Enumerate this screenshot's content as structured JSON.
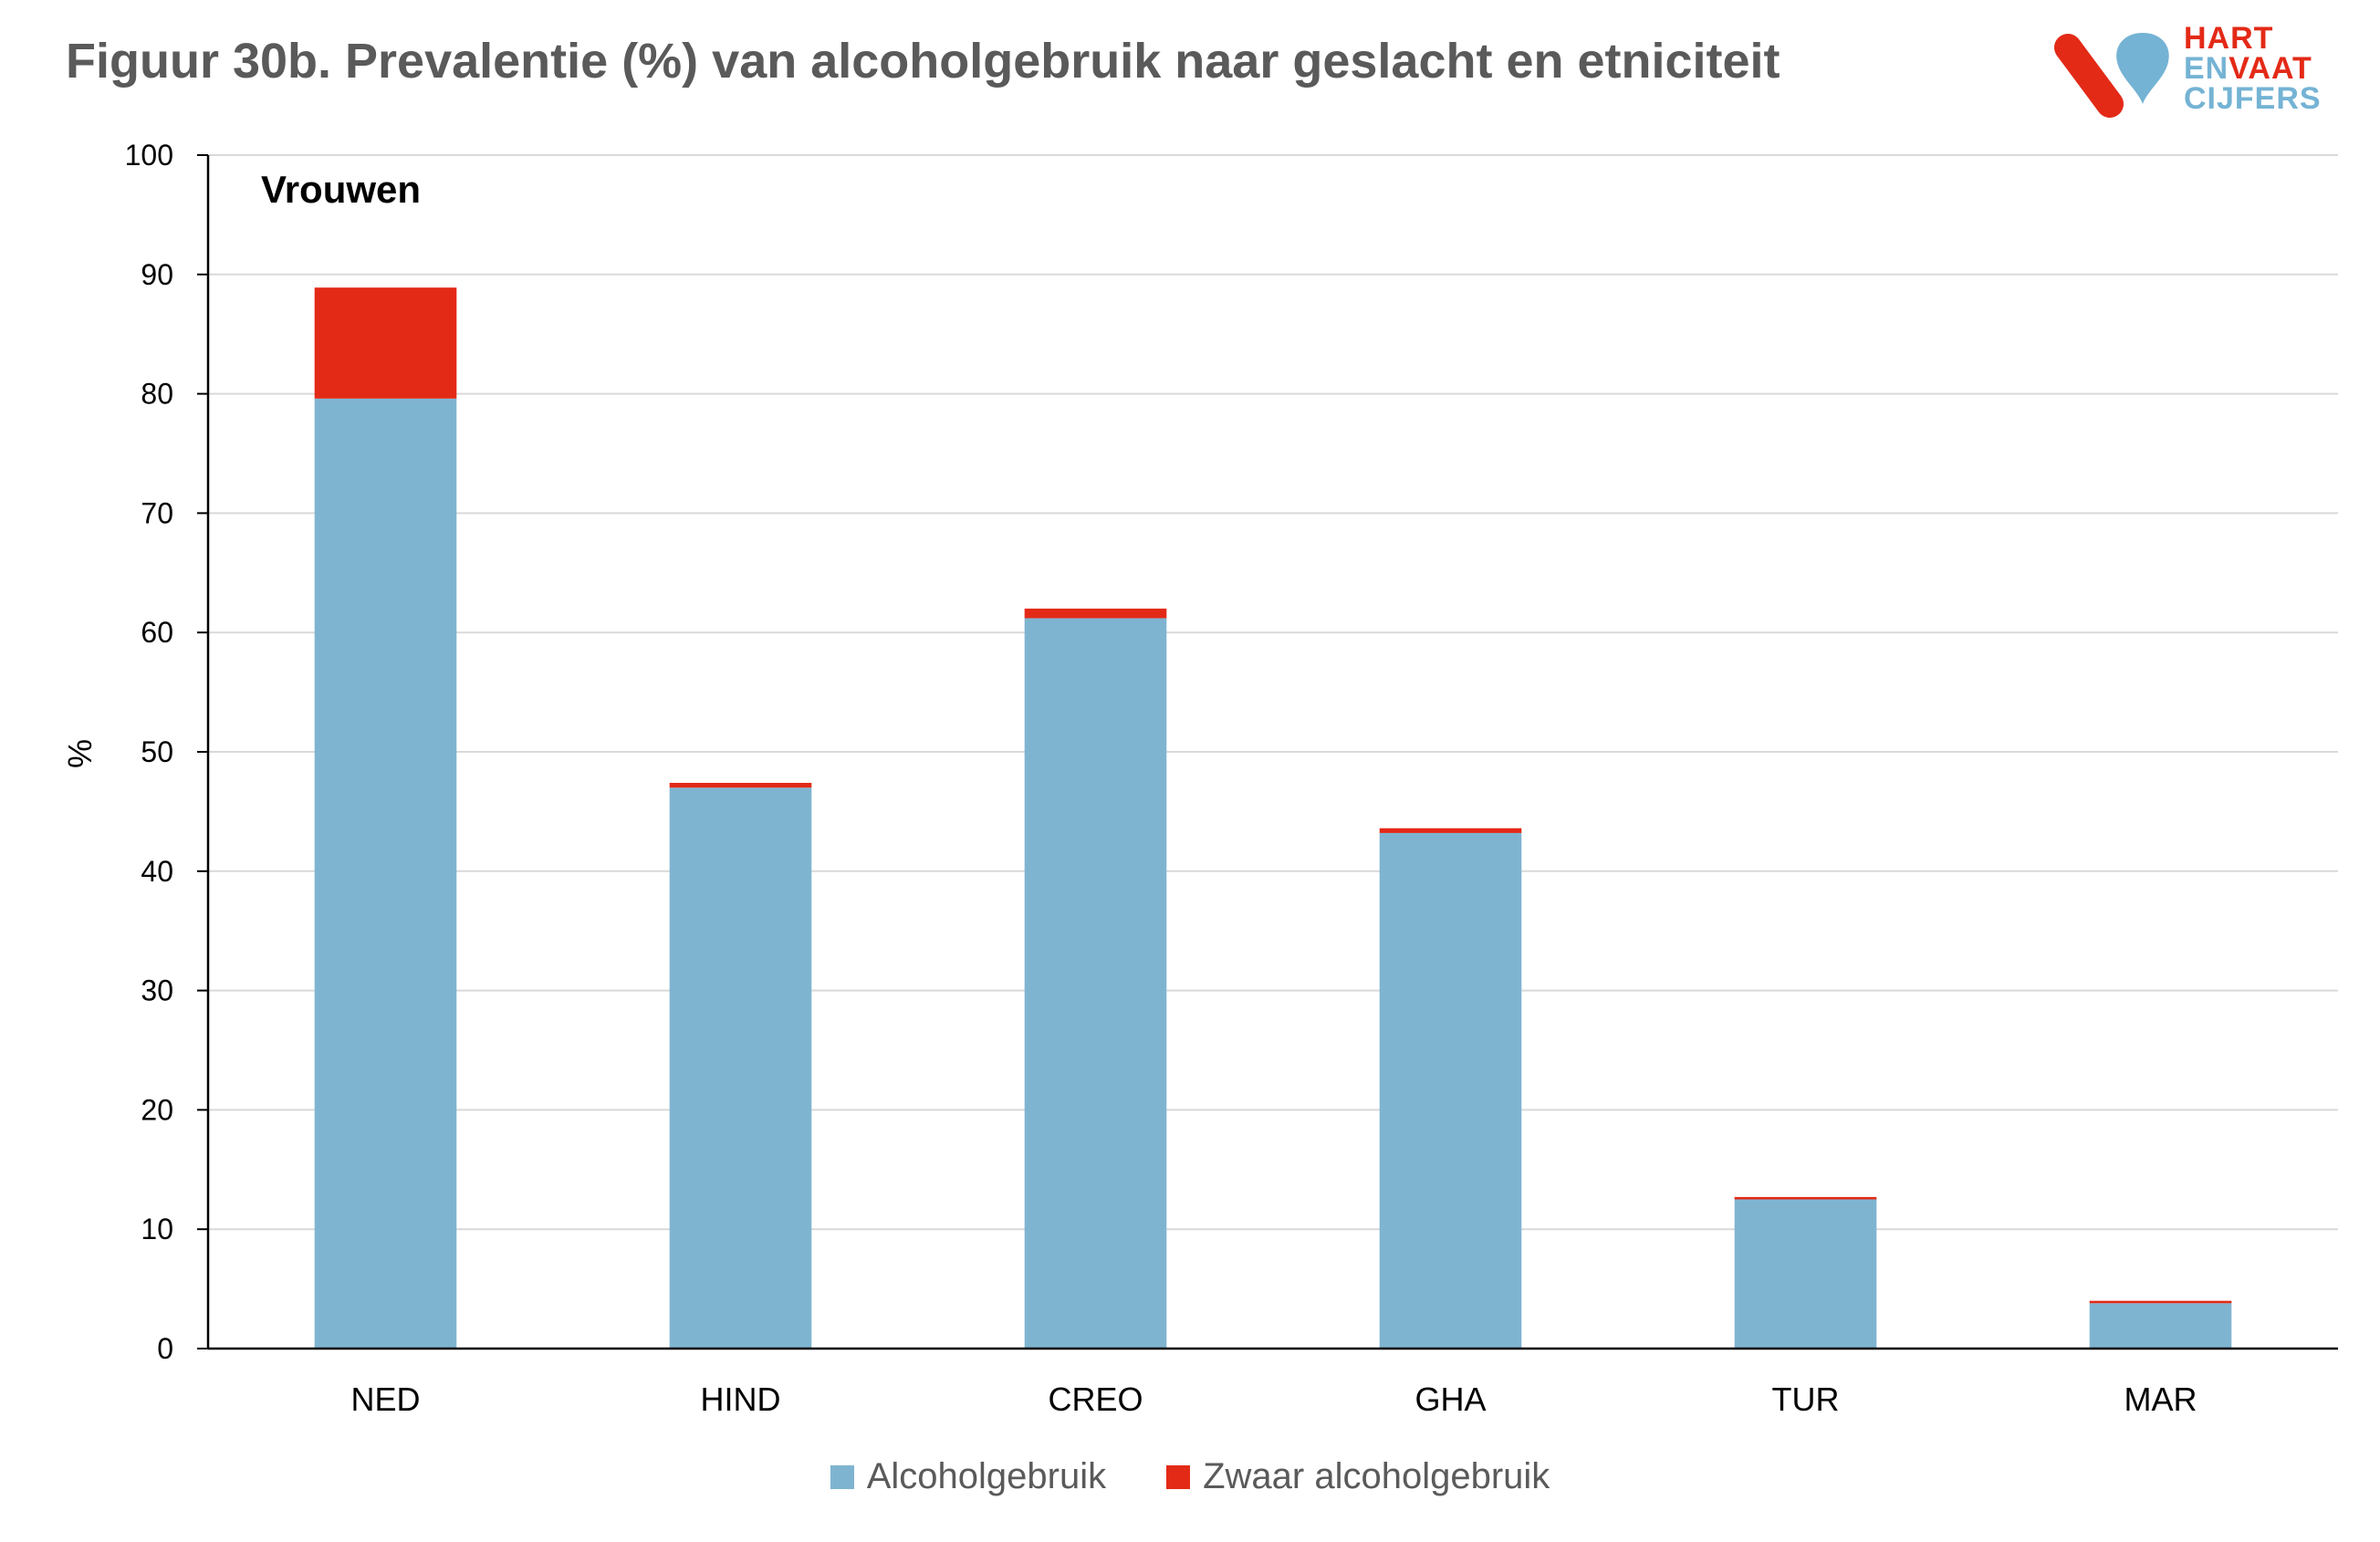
{
  "title": "Figuur 30b. Prevalentie (%) van alcoholgebruik naar geslacht en etniciteit",
  "logo": {
    "line1": "HART",
    "line2a": "EN",
    "line2b": "VAAT",
    "line3": "CIJFERS"
  },
  "colors": {
    "alcohol": "#7fb4d1",
    "heavy": "#e32a17",
    "grid": "#d9d9d9",
    "axis": "#000000",
    "title": "#5a5a5a"
  },
  "chart_data": {
    "type": "bar",
    "stacked": true,
    "panel_label": "Vrouwen",
    "ylabel": "%",
    "xlabel": "",
    "ylim": [
      0,
      100
    ],
    "yticks": [
      0,
      10,
      20,
      30,
      40,
      50,
      60,
      70,
      80,
      90,
      100
    ],
    "categories": [
      "NED",
      "HIND",
      "CREO",
      "GHA",
      "TUR",
      "MAR"
    ],
    "series": [
      {
        "name": "Alcoholgebruik",
        "color": "#7fb4d1",
        "values": [
          79.6,
          47.0,
          61.2,
          43.2,
          12.5,
          3.8
        ]
      },
      {
        "name": "Zwaar alcoholgebruik",
        "color": "#e32a17",
        "values": [
          9.3,
          0.4,
          0.8,
          0.4,
          0.2,
          0.2
        ]
      }
    ],
    "grid": true,
    "legend_position": "bottom"
  }
}
